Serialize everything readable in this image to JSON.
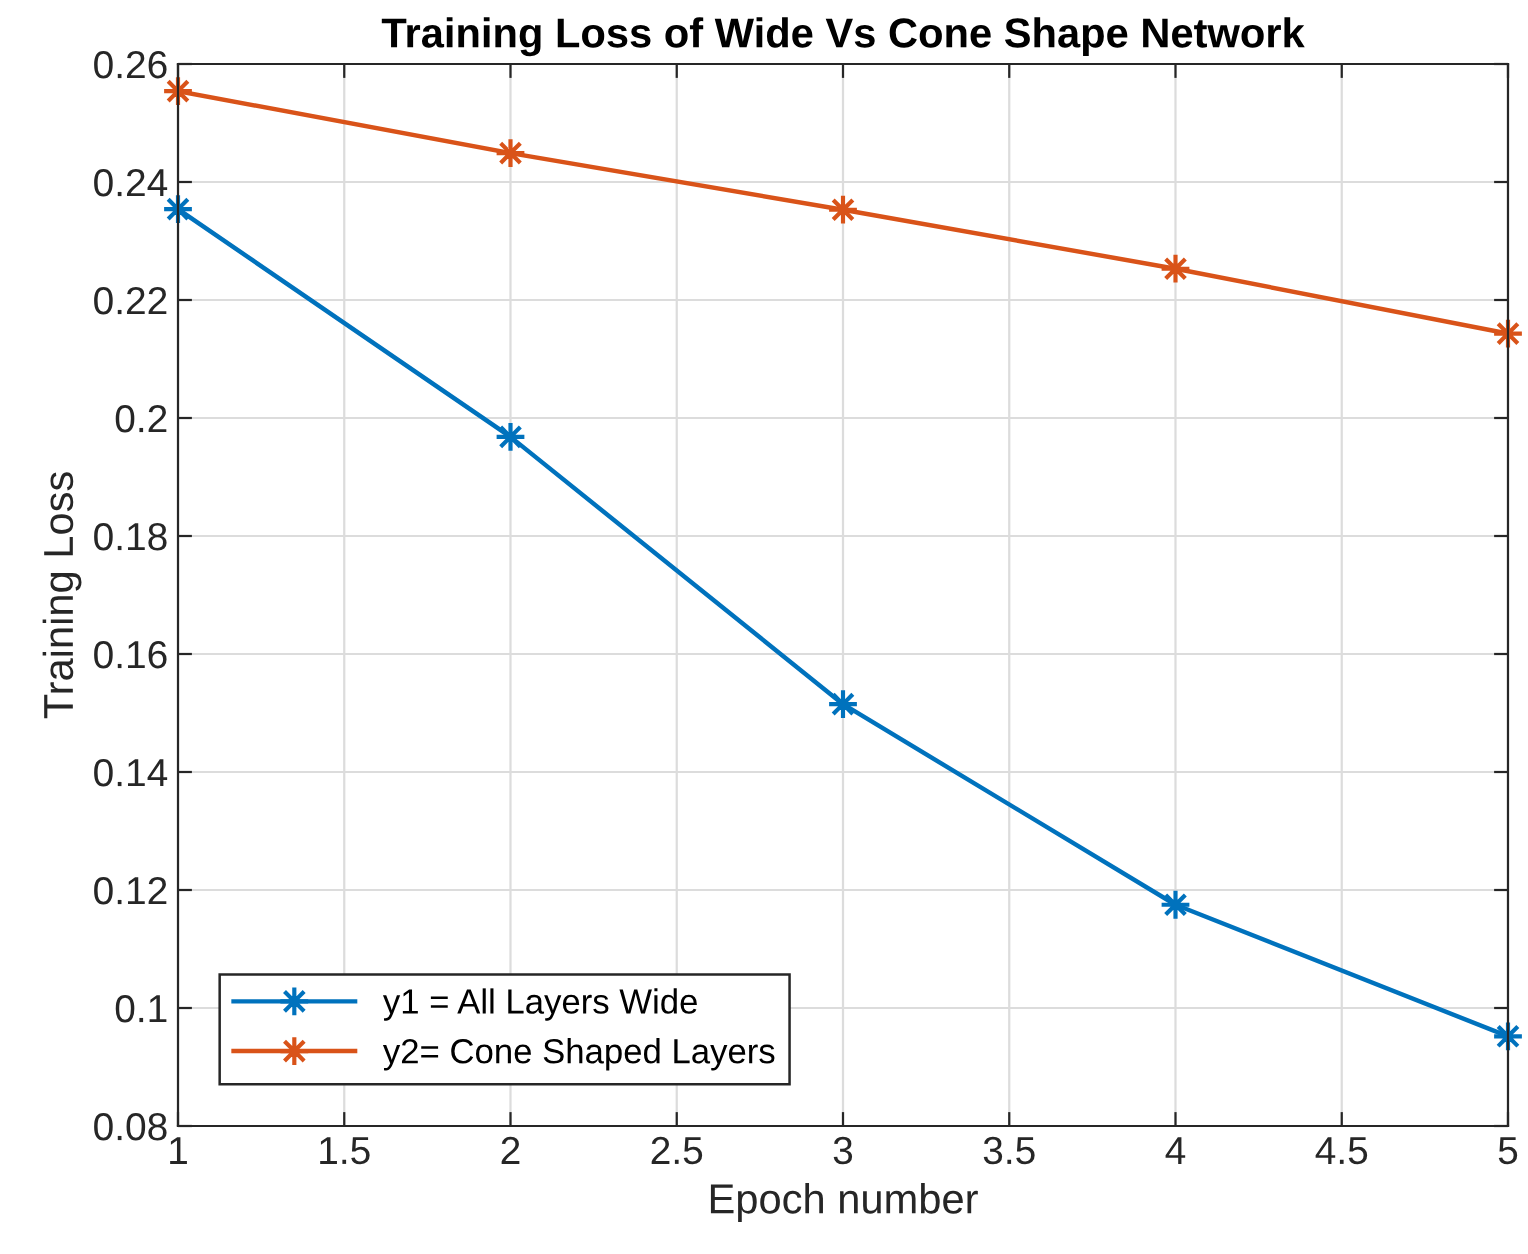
{
  "chart_data": {
    "type": "line",
    "title": "Training Loss of Wide Vs Cone Shape Network",
    "xlabel": "Epoch number",
    "ylabel": "Training Loss",
    "x": [
      1,
      2,
      3,
      4,
      5
    ],
    "series": [
      {
        "name": "y1 = All Layers Wide",
        "color": "#0072bd",
        "values": [
          0.2354,
          0.1968,
          0.1515,
          0.1175,
          0.0952
        ]
      },
      {
        "name": "y2= Cone Shaped Layers",
        "color": "#d95319",
        "values": [
          0.2554,
          0.2449,
          0.2353,
          0.2253,
          0.2143
        ]
      }
    ],
    "xlim": [
      1,
      5
    ],
    "xticks": [
      1,
      1.5,
      2,
      2.5,
      3,
      3.5,
      4,
      4.5,
      5
    ],
    "ylim": [
      0.08,
      0.26
    ],
    "yticks": [
      0.08,
      0.1,
      0.12,
      0.14,
      0.16,
      0.18,
      0.2,
      0.22,
      0.24,
      0.26
    ],
    "grid": true,
    "legend": "bottom left",
    "marker": "star",
    "line_style": "solid"
  }
}
